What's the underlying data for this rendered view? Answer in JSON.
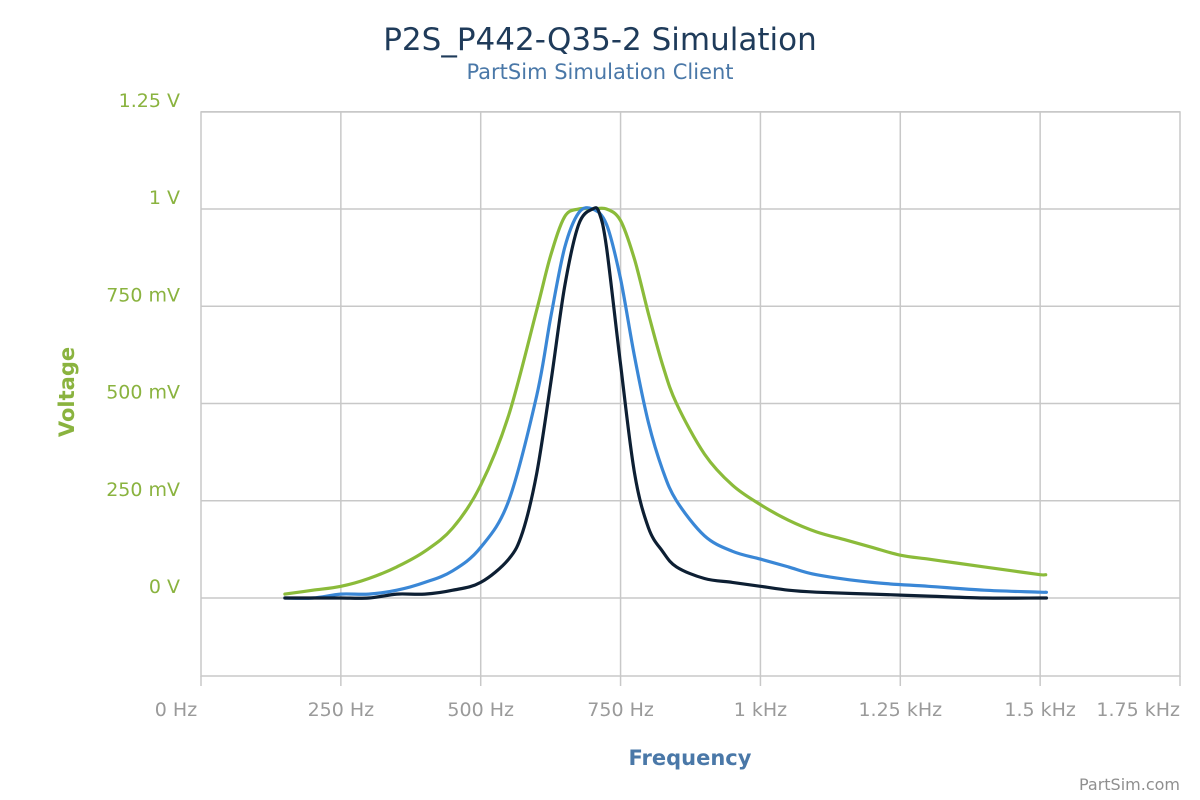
{
  "chart_data": {
    "type": "line",
    "title": "P2S_P442-Q35-2 Simulation",
    "subtitle": "PartSim Simulation Client",
    "xlabel": "Frequency",
    "ylabel": "Voltage",
    "xlim": [
      0,
      1750
    ],
    "ylim": [
      -0.2,
      1.25
    ],
    "grid": true,
    "x_ticks": [
      {
        "value": 0,
        "label": "0 Hz"
      },
      {
        "value": 250,
        "label": "250 Hz"
      },
      {
        "value": 500,
        "label": "500 Hz"
      },
      {
        "value": 750,
        "label": "750 Hz"
      },
      {
        "value": 1000,
        "label": "1 kHz"
      },
      {
        "value": 1250,
        "label": "1.25 kHz"
      },
      {
        "value": 1500,
        "label": "1.5 kHz"
      },
      {
        "value": 1750,
        "label": "1.75 kHz"
      }
    ],
    "y_ticks": [
      {
        "value": 0,
        "label": "0 V"
      },
      {
        "value": 0.25,
        "label": "250 mV"
      },
      {
        "value": 0.5,
        "label": "500 mV"
      },
      {
        "value": 0.75,
        "label": "750 mV"
      },
      {
        "value": 1.0,
        "label": "1 V"
      },
      {
        "value": 1.25,
        "label": "1.25 V"
      }
    ],
    "series": [
      {
        "color": "#8bbb3a",
        "x": [
          150,
          200,
          250,
          300,
          350,
          400,
          450,
          500,
          550,
          600,
          625,
          650,
          675,
          700,
          725,
          750,
          775,
          800,
          825,
          850,
          900,
          950,
          1000,
          1050,
          1100,
          1150,
          1200,
          1250,
          1300,
          1350,
          1400,
          1450,
          1500,
          1510
        ],
        "y": [
          0.01,
          0.02,
          0.03,
          0.05,
          0.08,
          0.12,
          0.18,
          0.29,
          0.47,
          0.74,
          0.88,
          0.98,
          1.0,
          1.0,
          1.0,
          0.97,
          0.87,
          0.73,
          0.6,
          0.5,
          0.37,
          0.29,
          0.24,
          0.2,
          0.17,
          0.15,
          0.13,
          0.11,
          0.1,
          0.09,
          0.08,
          0.07,
          0.06,
          0.06
        ]
      },
      {
        "color": "#3a87d6",
        "x": [
          150,
          200,
          250,
          300,
          350,
          400,
          450,
          500,
          550,
          600,
          625,
          650,
          675,
          700,
          725,
          750,
          775,
          800,
          825,
          850,
          900,
          950,
          1000,
          1050,
          1100,
          1200,
          1300,
          1400,
          1500,
          1510
        ],
        "y": [
          0.0,
          0.0,
          0.01,
          0.01,
          0.02,
          0.04,
          0.07,
          0.13,
          0.25,
          0.52,
          0.72,
          0.9,
          0.99,
          1.0,
          0.96,
          0.82,
          0.62,
          0.45,
          0.33,
          0.25,
          0.16,
          0.12,
          0.1,
          0.08,
          0.06,
          0.04,
          0.03,
          0.02,
          0.015,
          0.015
        ]
      },
      {
        "color": "#0d1f33",
        "x": [
          150,
          200,
          250,
          300,
          350,
          400,
          450,
          500,
          550,
          575,
          600,
          625,
          650,
          675,
          700,
          712,
          725,
          750,
          775,
          800,
          825,
          850,
          900,
          950,
          1000,
          1050,
          1100,
          1200,
          1300,
          1400,
          1500,
          1510
        ],
        "y": [
          0.0,
          0.0,
          0.0,
          0.0,
          0.01,
          0.01,
          0.02,
          0.04,
          0.1,
          0.17,
          0.32,
          0.55,
          0.8,
          0.96,
          1.0,
          0.99,
          0.9,
          0.6,
          0.32,
          0.18,
          0.12,
          0.08,
          0.05,
          0.04,
          0.03,
          0.02,
          0.015,
          0.01,
          0.005,
          0.0,
          0.0,
          0.0
        ]
      }
    ]
  },
  "watermark": "PartSim.com"
}
